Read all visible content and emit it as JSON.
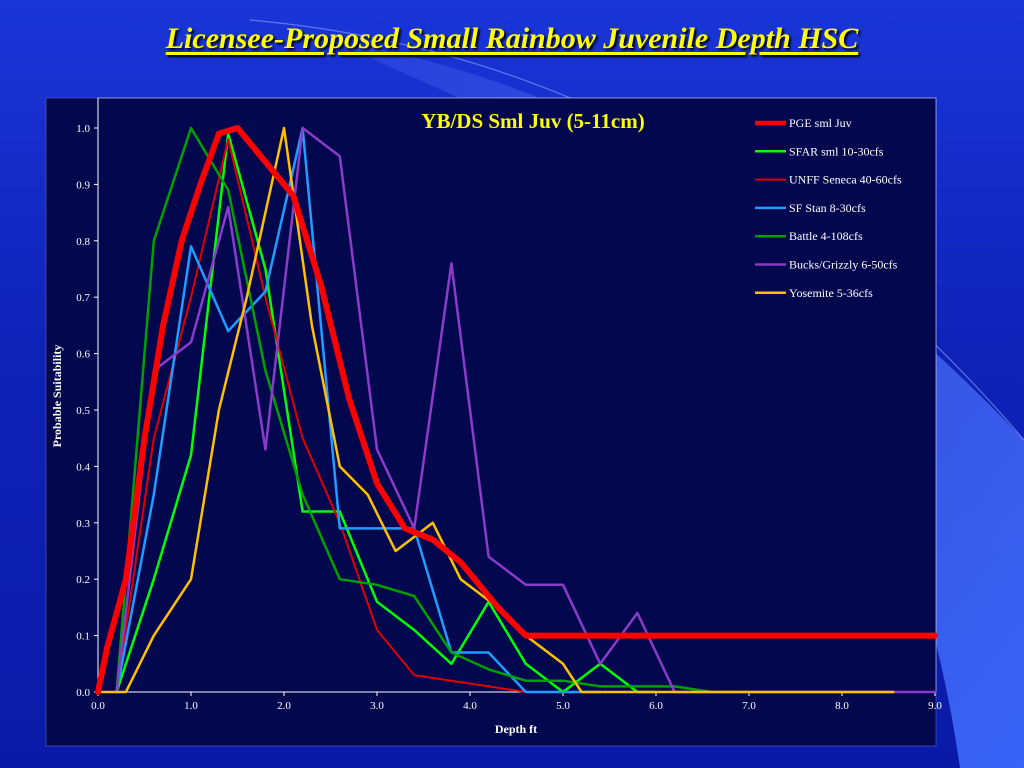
{
  "slide": {
    "title": "Licensee-Proposed Small Rainbow Juvenile Depth HSC"
  },
  "colors": {
    "background": "#1330c8",
    "plot_area": "#02074e",
    "title": "#ffff00",
    "text": "#ffffff"
  },
  "chart_data": {
    "type": "line",
    "title": "YB/DS Sml Juv (5-11cm)",
    "xlabel": "Depth ft",
    "ylabel": "Probable Suitability",
    "xlim": [
      0,
      9
    ],
    "ylim": [
      0,
      1
    ],
    "xticks": [
      "0.0",
      "1.0",
      "2.0",
      "3.0",
      "4.0",
      "5.0",
      "6.0",
      "7.0",
      "8.0",
      "9.0"
    ],
    "yticks": [
      "0.0",
      "0.1",
      "0.2",
      "0.3",
      "0.4",
      "0.5",
      "0.6",
      "0.7",
      "0.8",
      "0.9",
      "1.0"
    ],
    "grid": false,
    "legend_position": "top-right",
    "series": [
      {
        "name": "PGE sml Juv",
        "color": "#ff0000",
        "width": 6,
        "points": [
          [
            0,
            0
          ],
          [
            0.1,
            0.08
          ],
          [
            0.3,
            0.2
          ],
          [
            0.5,
            0.45
          ],
          [
            0.7,
            0.65
          ],
          [
            0.9,
            0.8
          ],
          [
            1.1,
            0.9
          ],
          [
            1.3,
            0.99
          ],
          [
            1.5,
            1.0
          ],
          [
            1.8,
            0.94
          ],
          [
            2.1,
            0.88
          ],
          [
            2.4,
            0.72
          ],
          [
            2.7,
            0.52
          ],
          [
            3.0,
            0.37
          ],
          [
            3.3,
            0.29
          ],
          [
            3.6,
            0.27
          ],
          [
            3.9,
            0.23
          ],
          [
            4.3,
            0.15
          ],
          [
            4.6,
            0.1
          ],
          [
            5.0,
            0.1
          ],
          [
            6.0,
            0.1
          ],
          [
            7.0,
            0.1
          ],
          [
            8.0,
            0.1
          ],
          [
            9.0,
            0.1
          ]
        ]
      },
      {
        "name": "SFAR sml 10-30cfs",
        "color": "#00ff00",
        "width": 2.5,
        "points": [
          [
            0.2,
            0
          ],
          [
            0.6,
            0.2
          ],
          [
            1.0,
            0.42
          ],
          [
            1.4,
            0.99
          ],
          [
            1.8,
            0.75
          ],
          [
            2.2,
            0.32
          ],
          [
            2.6,
            0.32
          ],
          [
            3.0,
            0.16
          ],
          [
            3.4,
            0.11
          ],
          [
            3.8,
            0.05
          ],
          [
            4.2,
            0.16
          ],
          [
            4.6,
            0.05
          ],
          [
            5.0,
            0
          ],
          [
            5.4,
            0.05
          ],
          [
            5.8,
            0
          ],
          [
            6.0,
            0
          ]
        ]
      },
      {
        "name": "UNFF Seneca 40-60cfs",
        "color": "#e00000",
        "width": 2,
        "points": [
          [
            0.2,
            0
          ],
          [
            0.6,
            0.45
          ],
          [
            1.0,
            0.7
          ],
          [
            1.4,
            0.98
          ],
          [
            1.8,
            0.7
          ],
          [
            2.2,
            0.45
          ],
          [
            2.6,
            0.3
          ],
          [
            3.0,
            0.11
          ],
          [
            3.4,
            0.03
          ],
          [
            3.8,
            0.02
          ],
          [
            4.2,
            0.01
          ],
          [
            4.6,
            0
          ],
          [
            5.0,
            0
          ]
        ]
      },
      {
        "name": "SF Stan 8-30cfs",
        "color": "#1e9cff",
        "width": 2.5,
        "points": [
          [
            0.2,
            0
          ],
          [
            0.6,
            0.35
          ],
          [
            1.0,
            0.79
          ],
          [
            1.4,
            0.64
          ],
          [
            1.8,
            0.71
          ],
          [
            2.2,
            1.0
          ],
          [
            2.6,
            0.29
          ],
          [
            3.0,
            0.29
          ],
          [
            3.4,
            0.29
          ],
          [
            3.8,
            0.07
          ],
          [
            4.2,
            0.07
          ],
          [
            4.6,
            0
          ],
          [
            5.0,
            0
          ],
          [
            5.4,
            0
          ]
        ]
      },
      {
        "name": "Battle 4-108cfs",
        "color": "#00a000",
        "width": 2.5,
        "points": [
          [
            0.2,
            0
          ],
          [
            0.6,
            0.8
          ],
          [
            1.0,
            1.0
          ],
          [
            1.4,
            0.89
          ],
          [
            1.8,
            0.57
          ],
          [
            2.2,
            0.35
          ],
          [
            2.6,
            0.2
          ],
          [
            3.0,
            0.19
          ],
          [
            3.4,
            0.17
          ],
          [
            3.8,
            0.07
          ],
          [
            4.2,
            0.04
          ],
          [
            4.6,
            0.02
          ],
          [
            5.0,
            0.02
          ],
          [
            5.4,
            0.01
          ],
          [
            5.8,
            0.01
          ],
          [
            6.2,
            0.01
          ],
          [
            6.6,
            0
          ],
          [
            7.0,
            0
          ]
        ]
      },
      {
        "name": "Bucks/Grizzly 6-50cfs",
        "color": "#8a3cc8",
        "width": 2.5,
        "points": [
          [
            0.2,
            0
          ],
          [
            0.6,
            0.57
          ],
          [
            1.0,
            0.62
          ],
          [
            1.4,
            0.86
          ],
          [
            1.8,
            0.43
          ],
          [
            2.2,
            1.0
          ],
          [
            2.6,
            0.95
          ],
          [
            3.0,
            0.43
          ],
          [
            3.4,
            0.29
          ],
          [
            3.8,
            0.76
          ],
          [
            4.2,
            0.24
          ],
          [
            4.6,
            0.19
          ],
          [
            5.0,
            0.19
          ],
          [
            5.4,
            0.05
          ],
          [
            5.8,
            0.14
          ],
          [
            6.2,
            0
          ],
          [
            7.0,
            0
          ],
          [
            8.0,
            0
          ],
          [
            8.5,
            0
          ],
          [
            9.0,
            0
          ]
        ]
      },
      {
        "name": "Yosemite 5-36cfs",
        "color": "#ffc000",
        "width": 2.5,
        "points": [
          [
            0,
            0
          ],
          [
            0.3,
            0
          ],
          [
            0.6,
            0.1
          ],
          [
            1.0,
            0.2
          ],
          [
            1.3,
            0.5
          ],
          [
            1.6,
            0.7
          ],
          [
            2.0,
            1.0
          ],
          [
            2.3,
            0.65
          ],
          [
            2.6,
            0.4
          ],
          [
            2.9,
            0.35
          ],
          [
            3.2,
            0.25
          ],
          [
            3.6,
            0.3
          ],
          [
            3.9,
            0.2
          ],
          [
            4.3,
            0.15
          ],
          [
            4.6,
            0.1
          ],
          [
            5.0,
            0.05
          ],
          [
            5.2,
            0
          ],
          [
            6.0,
            0
          ],
          [
            7.0,
            0
          ],
          [
            8.0,
            0
          ],
          [
            8.55,
            0
          ]
        ]
      }
    ]
  }
}
